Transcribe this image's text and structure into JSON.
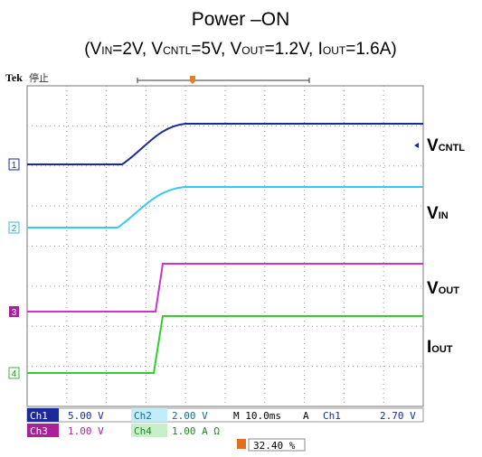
{
  "title": "Power –ON",
  "subtitle_parts": [
    "(V",
    "IN",
    "=2V, V",
    "CNTL",
    "=5V, V",
    "OUT",
    "=1.2V, I",
    "OUT",
    "=1.6A)"
  ],
  "status": {
    "brand": "Tek",
    "state": "停止"
  },
  "channel_markers": [
    "1",
    "2",
    "3",
    "4"
  ],
  "trace_labels": [
    {
      "base": "V",
      "sub": "CNTL"
    },
    {
      "base": "V",
      "sub": "IN"
    },
    {
      "base": "V",
      "sub": "OUT"
    },
    {
      "base": "I",
      "sub": "OUT"
    }
  ],
  "readout": {
    "row1": [
      "Ch1",
      "5.00 V",
      "Ch2",
      "2.00 V",
      "M 10.0ms",
      "A",
      "Ch1",
      "2.70 V"
    ],
    "row2": [
      "Ch3",
      "1.00 V",
      "Ch4",
      "1.00 A Ω"
    ],
    "trigger_position": "32.40 %"
  }
}
